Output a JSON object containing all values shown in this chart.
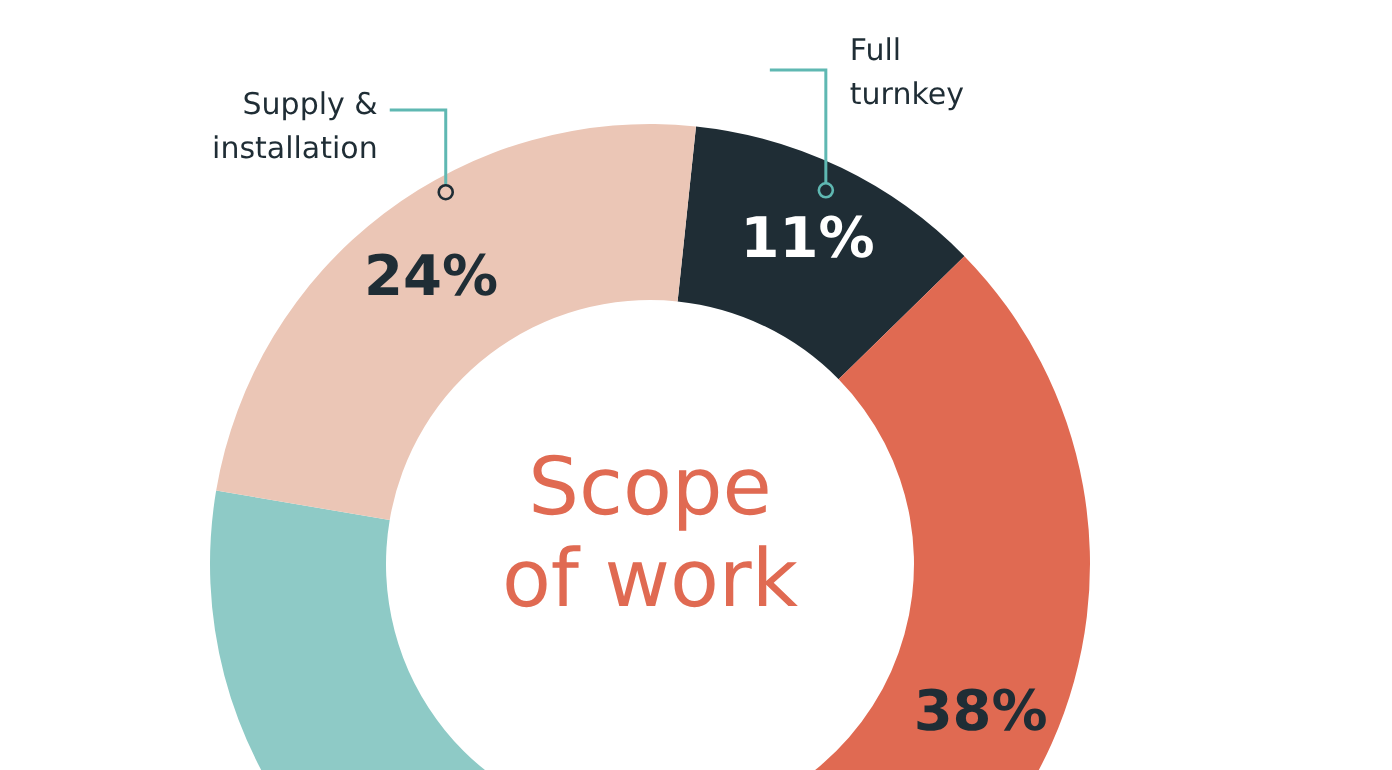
{
  "chart_data": {
    "type": "donut",
    "title": "Scope of work",
    "categories": [
      "Full turnkey",
      null,
      null,
      "Supply & installation"
    ],
    "values": [
      11,
      38,
      27,
      24
    ],
    "colors": [
      "#1f2d35",
      "#e06a52",
      "#8ecac6",
      "#ebc6b6"
    ],
    "value_labels": [
      "11%",
      "38%",
      null,
      "24%"
    ]
  }
}
